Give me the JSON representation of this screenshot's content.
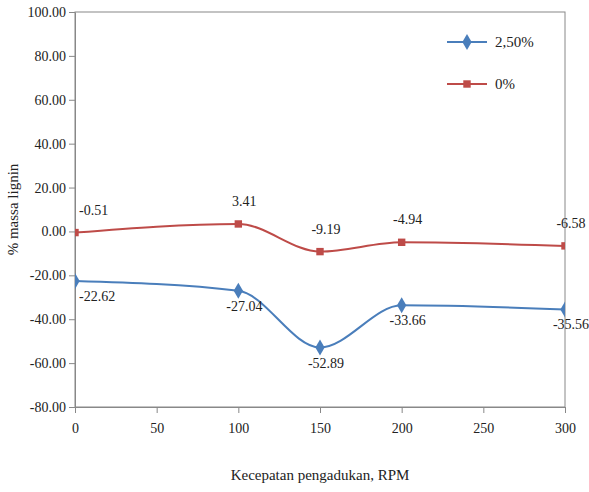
{
  "chart_data": {
    "type": "line",
    "x_label": "Kecepatan pengadukan, RPM",
    "y_label": "% massa lignin",
    "x": [
      0,
      100,
      150,
      200,
      300
    ],
    "series": [
      {
        "name": "2,50%",
        "color": "#4a7ebb",
        "marker": "diamond",
        "line_style": "solid",
        "values": [
          -22.62,
          -27.04,
          -52.89,
          -33.66,
          -35.56
        ]
      },
      {
        "name": "0%",
        "color": "#be4b48",
        "marker": "square",
        "line_style": "solid",
        "values": [
          -0.51,
          3.41,
          -9.19,
          -4.94,
          -6.58
        ]
      }
    ],
    "xlim": [
      0,
      300
    ],
    "xticks": [
      0,
      50,
      100,
      150,
      200,
      250,
      300
    ],
    "ylim": [
      -80,
      100
    ],
    "yticks": [
      {
        "value": -80,
        "label": "-80.00"
      },
      {
        "value": -60,
        "label": "-60.00"
      },
      {
        "value": -40,
        "label": "-40.00"
      },
      {
        "value": -20,
        "label": "-20.00"
      },
      {
        "value": 0,
        "label": "0.00"
      },
      {
        "value": 20,
        "label": "20.00"
      },
      {
        "value": 40,
        "label": "40.00"
      },
      {
        "value": 60,
        "label": "60.00"
      },
      {
        "value": 80,
        "label": "80.00"
      },
      {
        "value": 100,
        "label": "100.00"
      }
    ],
    "grid": false,
    "legend": "top-right",
    "data_labels": true
  }
}
